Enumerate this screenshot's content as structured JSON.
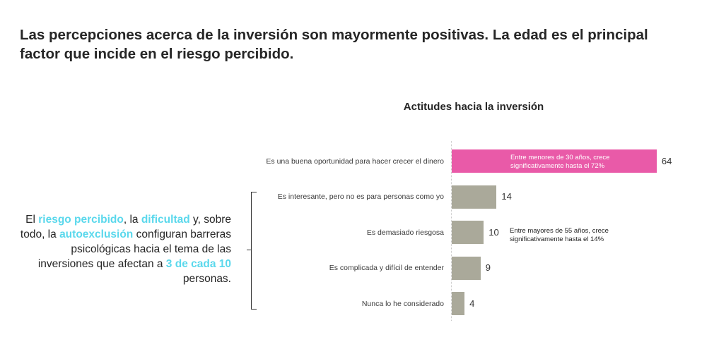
{
  "headline": "Las percepciones acerca de la inversión son mayormente positivas. La edad es el principal factor que incide en el riesgo percibido.",
  "colors": {
    "highlight_bar": "#e95aa8",
    "bar": "#aaa99a",
    "accent_text": "#5ad8ec"
  },
  "sidenote": {
    "p1": "El ",
    "h1": "riesgo percibido",
    "p2": ", la ",
    "h2": "dificultad",
    "p3": " y, sobre todo, la ",
    "h3": "autoexclusión",
    "p4": " configuran barreras psicológicas hacia el tema de las inversiones que afectan a ",
    "h4": "3 de cada 10",
    "p5": " personas."
  },
  "chart_data": {
    "type": "bar",
    "orientation": "horizontal",
    "title": "Actitudes hacia la inversión",
    "categories": [
      "Es una buena oportunidad para hacer crecer el dinero",
      "Es interesante, pero no es para personas como yo",
      "Es demasiado riesgosa",
      "Es complicada y difícil de entender",
      "Nunca lo he considerado"
    ],
    "values": [
      64,
      14,
      10,
      9,
      4
    ],
    "highlight_index": 0,
    "annotations": {
      "bar_note": [
        "Entre menores de 30 años, crece",
        "significativamente hasta el 72%"
      ],
      "side_note": [
        "Entre mayores de 55 años, crece",
        "significativamente hasta el 14%"
      ]
    }
  }
}
